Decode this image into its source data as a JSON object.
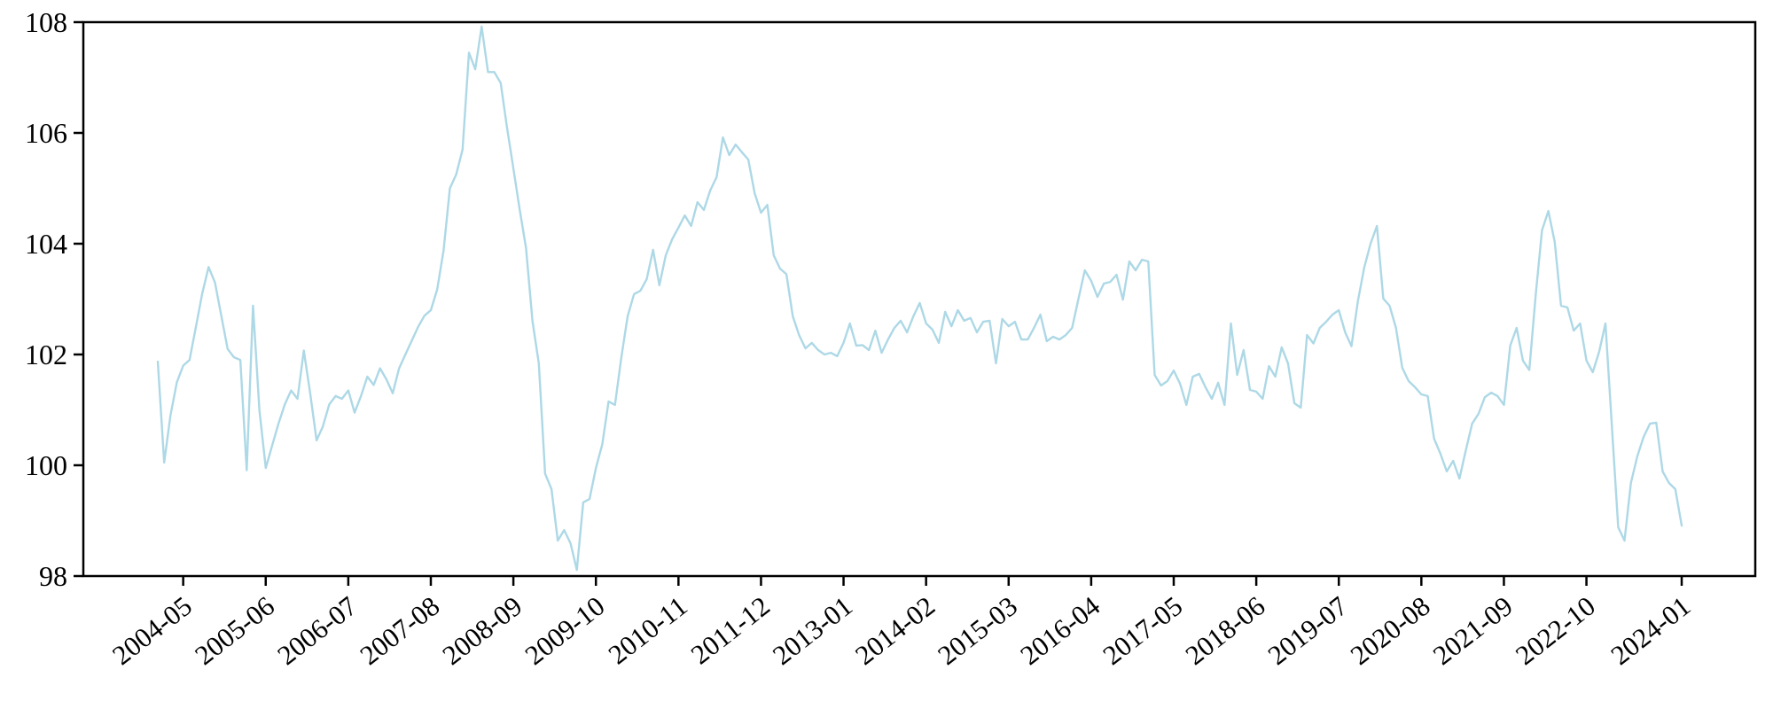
{
  "figure": {
    "background": "#ffffff",
    "axis_color": "#000000",
    "tick_label_color": "#000000"
  },
  "chart_data": {
    "type": "line",
    "title": "",
    "xlabel": "",
    "ylabel": "",
    "grid": false,
    "legend": "none",
    "line_color": "#ADD8E6",
    "line_width": 2.4,
    "ylim": [
      98,
      108
    ],
    "y_ticks": [
      98,
      100,
      102,
      104,
      106,
      108
    ],
    "x_unit": "month",
    "x_index_count": 241,
    "x_tick_indices": [
      4,
      17,
      30,
      43,
      56,
      69,
      82,
      95,
      108,
      121,
      134,
      147,
      160,
      173,
      186,
      199,
      212,
      225,
      240
    ],
    "x_tick_labels": [
      "2004-05",
      "2005-06",
      "2006-07",
      "2007-08",
      "2008-09",
      "2009-10",
      "2010-11",
      "2011-12",
      "2013-01",
      "2014-02",
      "2015-03",
      "2016-04",
      "2017-05",
      "2018-06",
      "2019-07",
      "2020-08",
      "2021-09",
      "2022-10",
      "2024-01"
    ],
    "x_tick_rotation_deg": -38,
    "values": [
      101.87,
      100.05,
      100.9,
      101.5,
      101.8,
      101.9,
      102.5,
      103.1,
      103.58,
      103.3,
      102.7,
      102.1,
      101.95,
      101.9,
      99.91,
      102.88,
      101.0,
      99.95,
      100.35,
      100.75,
      101.1,
      101.35,
      101.2,
      102.07,
      101.3,
      100.45,
      100.7,
      101.1,
      101.25,
      101.2,
      101.35,
      100.95,
      101.25,
      101.6,
      101.45,
      101.75,
      101.55,
      101.3,
      101.75,
      102.0,
      102.25,
      102.5,
      102.7,
      102.8,
      103.17,
      103.87,
      105.0,
      105.25,
      105.7,
      107.45,
      107.15,
      107.92,
      107.1,
      107.1,
      106.9,
      106.1,
      105.36,
      104.61,
      103.92,
      102.61,
      101.84,
      99.85,
      99.57,
      98.64,
      98.83,
      98.59,
      98.11,
      99.33,
      99.39,
      99.95,
      100.38,
      101.15,
      101.09,
      101.95,
      102.69,
      103.09,
      103.15,
      103.36,
      103.89,
      103.25,
      103.79,
      104.08,
      104.29,
      104.51,
      104.32,
      104.75,
      104.61,
      104.96,
      105.2,
      105.92,
      105.6,
      105.79,
      105.65,
      105.52,
      104.91,
      104.56,
      104.7,
      103.79,
      103.55,
      103.45,
      102.69,
      102.35,
      102.11,
      102.21,
      102.08,
      102.0,
      102.03,
      101.97,
      102.21,
      102.56,
      102.16,
      102.17,
      102.08,
      102.43,
      102.03,
      102.27,
      102.48,
      102.61,
      102.4,
      102.69,
      102.93,
      102.56,
      102.45,
      102.21,
      102.77,
      102.51,
      102.8,
      102.61,
      102.66,
      102.4,
      102.59,
      102.61,
      101.84,
      102.64,
      102.51,
      102.59,
      102.27,
      102.27,
      102.48,
      102.72,
      102.24,
      102.32,
      102.27,
      102.35,
      102.48,
      103.01,
      103.52,
      103.33,
      103.04,
      103.28,
      103.31,
      103.44,
      102.99,
      103.68,
      103.52,
      103.71,
      103.68,
      101.63,
      101.44,
      101.52,
      101.71,
      101.47,
      101.09,
      101.6,
      101.65,
      101.41,
      101.2,
      101.49,
      101.09,
      102.56,
      101.63,
      102.08,
      101.36,
      101.33,
      101.2,
      101.79,
      101.6,
      102.13,
      101.84,
      101.12,
      101.04,
      102.35,
      102.2,
      102.48,
      102.59,
      102.72,
      102.8,
      102.4,
      102.15,
      102.96,
      103.57,
      104.0,
      104.32,
      103.01,
      102.88,
      102.48,
      101.76,
      101.52,
      101.41,
      101.28,
      101.25,
      100.48,
      100.21,
      99.89,
      100.08,
      99.76,
      100.27,
      100.75,
      100.93,
      101.23,
      101.31,
      101.25,
      101.09,
      102.16,
      102.48,
      101.89,
      101.72,
      103.07,
      104.24,
      104.59,
      104.03,
      102.88,
      102.85,
      102.43,
      102.56,
      101.89,
      101.68,
      102.05,
      102.56,
      100.72,
      98.88,
      98.64,
      99.68,
      100.16,
      100.51,
      100.75,
      100.77,
      99.89,
      99.68,
      99.57,
      98.91
    ]
  }
}
